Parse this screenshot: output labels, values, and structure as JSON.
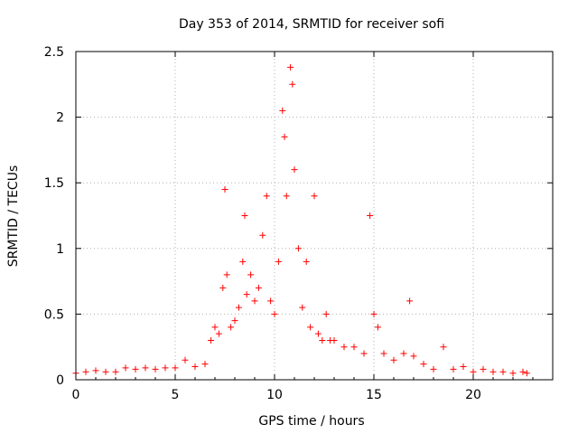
{
  "chart_data": {
    "type": "scatter",
    "title": "Day 353 of 2014, SRMTID for receiver sofi",
    "xlabel": "GPS time / hours",
    "ylabel": "SRMTID / TECUs",
    "xlim": [
      0,
      24
    ],
    "ylim": [
      0,
      2.5
    ],
    "xticks": [
      0,
      5,
      10,
      15,
      20
    ],
    "yticks": [
      0,
      0.5,
      1,
      1.5,
      2,
      2.5
    ],
    "xtick_labels": [
      "0",
      "5",
      "10",
      "15",
      "20"
    ],
    "ytick_labels": [
      "0",
      "0.5",
      "1",
      "1.5",
      "2",
      "2.5"
    ],
    "grid": true,
    "marker": "+",
    "series": [
      {
        "name": "SRMTID",
        "color": "#ff0000",
        "x": [
          0.0,
          0.5,
          1.0,
          1.5,
          2.0,
          2.5,
          3.0,
          3.5,
          4.0,
          4.5,
          5.0,
          5.5,
          6.0,
          6.5,
          6.8,
          7.0,
          7.2,
          7.4,
          7.5,
          7.6,
          7.8,
          8.0,
          8.2,
          8.4,
          8.5,
          8.6,
          8.8,
          9.0,
          9.2,
          9.4,
          9.6,
          9.8,
          10.0,
          10.2,
          10.4,
          10.5,
          10.6,
          10.8,
          10.9,
          11.0,
          11.2,
          11.4,
          11.6,
          11.8,
          12.0,
          12.2,
          12.4,
          12.6,
          12.8,
          13.0,
          13.5,
          14.0,
          14.5,
          14.8,
          15.0,
          15.2,
          15.5,
          16.0,
          16.5,
          16.8,
          17.0,
          17.5,
          18.0,
          18.5,
          19.0,
          19.5,
          20.0,
          20.5,
          21.0,
          21.5,
          22.0,
          22.5,
          22.7
        ],
        "y": [
          0.05,
          0.06,
          0.07,
          0.06,
          0.06,
          0.09,
          0.08,
          0.09,
          0.08,
          0.09,
          0.09,
          0.15,
          0.1,
          0.12,
          0.3,
          0.4,
          0.35,
          0.7,
          1.45,
          0.8,
          0.4,
          0.45,
          0.55,
          0.9,
          1.25,
          0.65,
          0.8,
          0.6,
          0.7,
          1.1,
          1.4,
          0.6,
          0.5,
          0.9,
          2.05,
          1.85,
          1.4,
          2.38,
          2.25,
          1.6,
          1.0,
          0.55,
          0.9,
          0.4,
          1.4,
          0.35,
          0.3,
          0.5,
          0.3,
          0.3,
          0.25,
          0.25,
          0.2,
          1.25,
          0.5,
          0.4,
          0.2,
          0.15,
          0.2,
          0.6,
          0.18,
          0.12,
          0.08,
          0.25,
          0.08,
          0.1,
          0.06,
          0.08,
          0.06,
          0.06,
          0.05,
          0.06,
          0.05
        ]
      }
    ]
  }
}
